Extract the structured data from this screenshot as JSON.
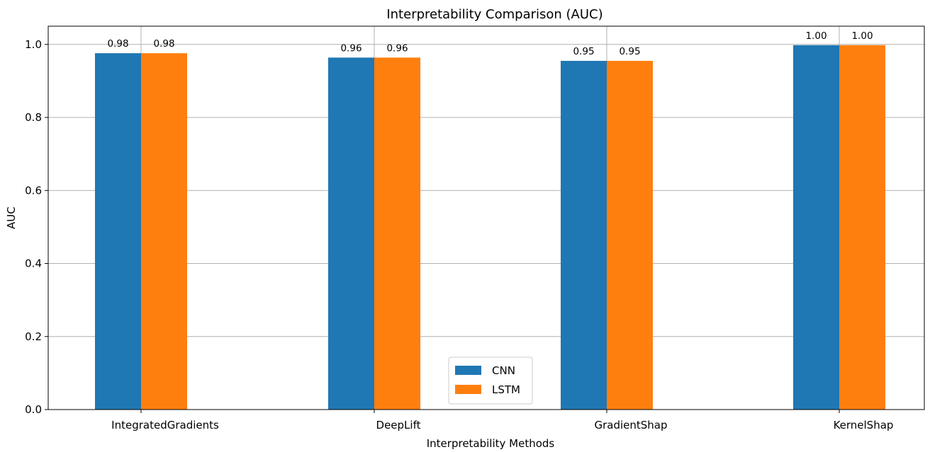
{
  "chart_data": {
    "type": "bar",
    "title": "Interpretability Comparison (AUC)",
    "xlabel": "Interpretability Methods",
    "ylabel": "AUC",
    "categories": [
      "IntegratedGradients",
      "DeepLift",
      "GradientShap",
      "KernelShap"
    ],
    "series": [
      {
        "name": "CNN",
        "values": [
          0.976,
          0.964,
          0.955,
          0.998
        ],
        "labels": [
          "0.98",
          "0.96",
          "0.95",
          "1.00"
        ],
        "color": "#1f77b4"
      },
      {
        "name": "LSTM",
        "values": [
          0.976,
          0.964,
          0.955,
          0.998
        ],
        "labels": [
          "0.98",
          "0.96",
          "0.95",
          "1.00"
        ],
        "color": "#ff7f0e"
      }
    ],
    "ylim": [
      0,
      1.05
    ],
    "yticks": [
      "0.0",
      "0.2",
      "0.4",
      "0.6",
      "0.8",
      "1.0"
    ],
    "grid": true,
    "legend_position": "bottom-center"
  }
}
